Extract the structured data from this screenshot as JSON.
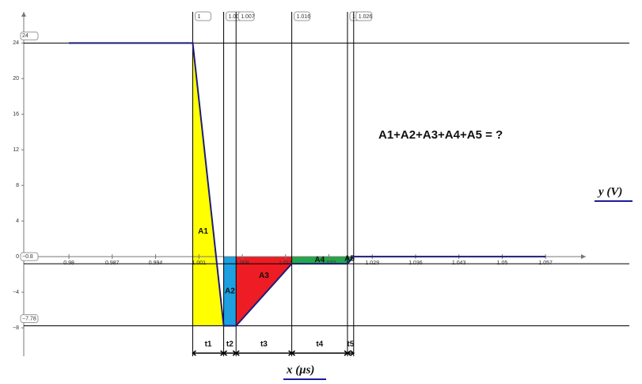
{
  "chart_data": {
    "type": "line",
    "title": "A1+A2+A3+A4+A5 = ?",
    "x_label": "x (μs)",
    "y_label": "y (V)",
    "xlim": [
      0.9727,
      1.0635
    ],
    "ylim": [
      -11.2,
      27.5
    ],
    "xticks": [
      0.98,
      0.987,
      0.994,
      1.001,
      1.008,
      1.015,
      1.022,
      1.029,
      1.036,
      1.043,
      1.05,
      1.057
    ],
    "yticks": [
      24,
      20,
      16,
      12,
      8,
      4,
      0,
      {
        "value": -4,
        "label": "−4"
      },
      {
        "value": -8,
        "label": "−8"
      }
    ],
    "x": [
      0.98,
      1,
      1.005,
      1.007,
      1.016,
      1.025,
      1.026,
      1.057
    ],
    "series": [
      {
        "color": "#1c1c78",
        "values": [
          24,
          24,
          -7.78,
          -7.78,
          -0.8,
          -0.8,
          0,
          0
        ]
      }
    ],
    "x_markers": [
      1,
      1.005,
      1.007,
      1.016,
      1.025,
      1.026
    ],
    "y_markers": [
      24,
      {
        "value": -0.8,
        "label": "−0.8"
      },
      {
        "value": -7.78,
        "label": "−7.78"
      }
    ],
    "areas": [
      {
        "name": "A1",
        "color": "#ffff00",
        "x": [
          1,
          1.005,
          1
        ],
        "y": [
          24,
          -7.78,
          -7.78
        ]
      },
      {
        "name": "A2",
        "color": "#1ea0e0",
        "x": [
          1.005,
          1.007,
          1.007,
          1.005
        ],
        "y": [
          0,
          0,
          -7.78,
          -7.78
        ]
      },
      {
        "name": "A3",
        "color": "#ee1c24",
        "x": [
          1.007,
          1.016,
          1.016,
          1.007
        ],
        "y": [
          0,
          0,
          -0.8,
          -7.78
        ]
      },
      {
        "name": "A4",
        "color": "#22a84a",
        "x": [
          1.016,
          1.025,
          1.025,
          1.016
        ],
        "y": [
          0,
          0,
          -0.8,
          -0.8
        ]
      },
      {
        "name": "A5",
        "color": "#22a84a",
        "x": [
          1.025,
          1.026,
          1.025
        ],
        "y": [
          0,
          0,
          -0.8
        ]
      }
    ],
    "intervals": [
      {
        "label": "t1",
        "from": 1,
        "to": 1.005
      },
      {
        "label": "t2",
        "from": 1.005,
        "to": 1.007
      },
      {
        "label": "t3",
        "from": 1.007,
        "to": 1.016
      },
      {
        "label": "t4",
        "from": 1.016,
        "to": 1.025
      },
      {
        "label": "t5",
        "from": 1.025,
        "to": 1.026
      }
    ]
  }
}
